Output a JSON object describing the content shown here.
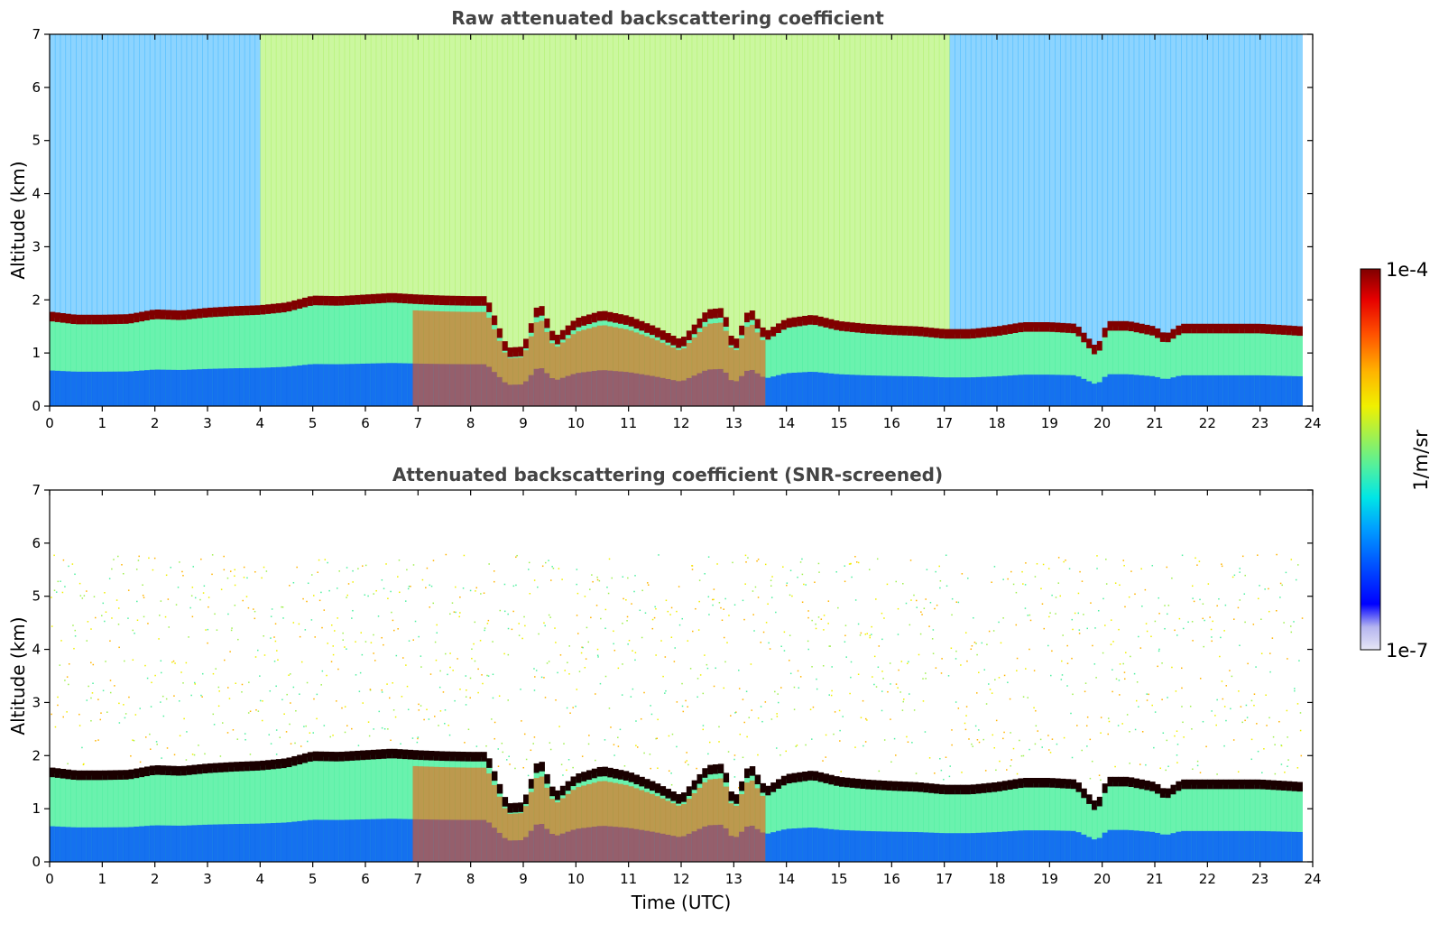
{
  "chart_data": [
    {
      "type": "heatmap",
      "title": "Raw attenuated backscattering coefficient",
      "xlabel": "",
      "ylabel": "Altitude (km)",
      "xlim": [
        0,
        24
      ],
      "ylim": [
        0,
        7
      ],
      "xticks": [
        "0",
        "1",
        "2",
        "3",
        "4",
        "5",
        "6",
        "7",
        "8",
        "9",
        "10",
        "11",
        "12",
        "13",
        "14",
        "15",
        "16",
        "17",
        "18",
        "19",
        "20",
        "21",
        "22",
        "23",
        "24"
      ],
      "yticks": [
        "0",
        "1",
        "2",
        "3",
        "4",
        "5",
        "6",
        "7"
      ],
      "screened": false,
      "layer_top_km": [
        [
          0.0,
          1.68
        ],
        [
          0.5,
          1.62
        ],
        [
          1.0,
          1.62
        ],
        [
          1.5,
          1.63
        ],
        [
          2.0,
          1.72
        ],
        [
          2.5,
          1.7
        ],
        [
          3.0,
          1.75
        ],
        [
          3.5,
          1.78
        ],
        [
          4.0,
          1.8
        ],
        [
          4.5,
          1.85
        ],
        [
          5.0,
          1.98
        ],
        [
          5.5,
          1.97
        ],
        [
          6.0,
          2.0
        ],
        [
          6.5,
          2.03
        ],
        [
          7.0,
          2.0
        ],
        [
          7.5,
          1.98
        ],
        [
          8.0,
          1.97
        ],
        [
          8.3,
          1.97
        ],
        [
          8.7,
          1.0
        ],
        [
          9.0,
          1.02
        ],
        [
          9.3,
          1.9
        ],
        [
          9.6,
          1.2
        ],
        [
          10.0,
          1.55
        ],
        [
          10.5,
          1.7
        ],
        [
          11.0,
          1.6
        ],
        [
          11.5,
          1.4
        ],
        [
          12.0,
          1.15
        ],
        [
          12.5,
          1.72
        ],
        [
          12.8,
          1.75
        ],
        [
          13.0,
          1.05
        ],
        [
          13.3,
          1.78
        ],
        [
          13.6,
          1.3
        ],
        [
          14.0,
          1.55
        ],
        [
          14.5,
          1.62
        ],
        [
          15.0,
          1.5
        ],
        [
          15.5,
          1.45
        ],
        [
          16.0,
          1.42
        ],
        [
          16.5,
          1.4
        ],
        [
          17.0,
          1.35
        ],
        [
          17.5,
          1.35
        ],
        [
          18.0,
          1.4
        ],
        [
          18.5,
          1.48
        ],
        [
          19.0,
          1.48
        ],
        [
          19.5,
          1.45
        ],
        [
          19.9,
          1.0
        ],
        [
          20.1,
          1.5
        ],
        [
          20.5,
          1.5
        ],
        [
          21.0,
          1.4
        ],
        [
          21.2,
          1.25
        ],
        [
          21.5,
          1.45
        ],
        [
          22.0,
          1.45
        ],
        [
          22.5,
          1.45
        ],
        [
          23.0,
          1.45
        ],
        [
          23.5,
          1.42
        ],
        [
          23.8,
          1.4
        ]
      ]
    },
    {
      "type": "heatmap",
      "title": "Attenuated backscattering coefficient (SNR-screened)",
      "xlabel": "Time (UTC)",
      "ylabel": "Altitude (km)",
      "xlim": [
        0,
        24
      ],
      "ylim": [
        0,
        7
      ],
      "xticks": [
        "0",
        "1",
        "2",
        "3",
        "4",
        "5",
        "6",
        "7",
        "8",
        "9",
        "10",
        "11",
        "12",
        "13",
        "14",
        "15",
        "16",
        "17",
        "18",
        "19",
        "20",
        "21",
        "22",
        "23",
        "24"
      ],
      "yticks": [
        "0",
        "1",
        "2",
        "3",
        "4",
        "5",
        "6",
        "7"
      ],
      "screened": true,
      "layer_top_km": [
        [
          0.0,
          1.68
        ],
        [
          0.5,
          1.62
        ],
        [
          1.0,
          1.62
        ],
        [
          1.5,
          1.63
        ],
        [
          2.0,
          1.72
        ],
        [
          2.5,
          1.7
        ],
        [
          3.0,
          1.75
        ],
        [
          3.5,
          1.78
        ],
        [
          4.0,
          1.8
        ],
        [
          4.5,
          1.85
        ],
        [
          5.0,
          1.98
        ],
        [
          5.5,
          1.97
        ],
        [
          6.0,
          2.0
        ],
        [
          6.5,
          2.03
        ],
        [
          7.0,
          2.0
        ],
        [
          7.5,
          1.98
        ],
        [
          8.0,
          1.97
        ],
        [
          8.3,
          1.97
        ],
        [
          8.7,
          1.0
        ],
        [
          9.0,
          1.02
        ],
        [
          9.3,
          1.9
        ],
        [
          9.6,
          1.2
        ],
        [
          10.0,
          1.55
        ],
        [
          10.5,
          1.7
        ],
        [
          11.0,
          1.6
        ],
        [
          11.5,
          1.4
        ],
        [
          12.0,
          1.15
        ],
        [
          12.5,
          1.72
        ],
        [
          12.8,
          1.75
        ],
        [
          13.0,
          1.05
        ],
        [
          13.3,
          1.78
        ],
        [
          13.6,
          1.3
        ],
        [
          14.0,
          1.55
        ],
        [
          14.5,
          1.62
        ],
        [
          15.0,
          1.5
        ],
        [
          15.5,
          1.45
        ],
        [
          16.0,
          1.42
        ],
        [
          16.5,
          1.4
        ],
        [
          17.0,
          1.35
        ],
        [
          17.5,
          1.35
        ],
        [
          18.0,
          1.4
        ],
        [
          18.5,
          1.48
        ],
        [
          19.0,
          1.48
        ],
        [
          19.5,
          1.45
        ],
        [
          19.9,
          1.0
        ],
        [
          20.1,
          1.5
        ],
        [
          20.5,
          1.5
        ],
        [
          21.0,
          1.4
        ],
        [
          21.2,
          1.25
        ],
        [
          21.5,
          1.45
        ],
        [
          22.0,
          1.45
        ],
        [
          22.5,
          1.45
        ],
        [
          23.0,
          1.45
        ],
        [
          23.5,
          1.42
        ],
        [
          23.8,
          1.4
        ]
      ]
    }
  ],
  "colorbar": {
    "label": "1/m/sr",
    "max_label": "1e-4",
    "min_label": "1e-7",
    "scale": "log",
    "colormap": "jet",
    "colors": [
      "#e6e6f5",
      "#b4b4f0",
      "#0000ff",
      "#0050ff",
      "#00a0ff",
      "#00e6e6",
      "#50f0a0",
      "#a0f050",
      "#f0f000",
      "#ffb400",
      "#ff5000",
      "#e60000",
      "#800000"
    ]
  }
}
